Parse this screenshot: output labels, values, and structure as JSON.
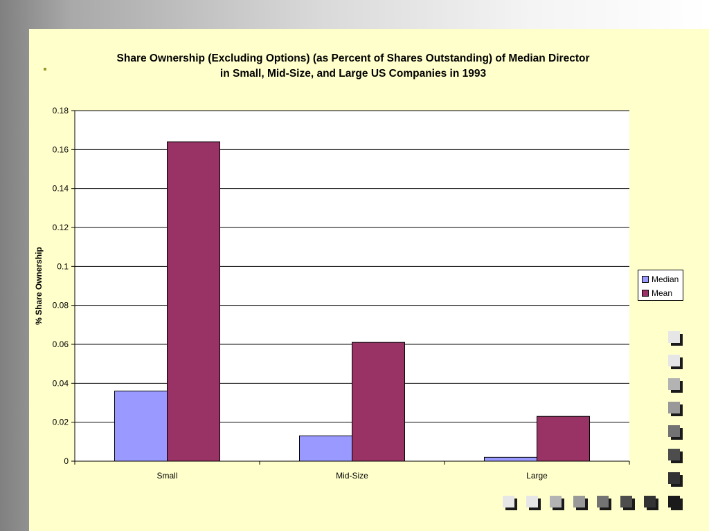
{
  "chart_data": {
    "type": "bar",
    "title": [
      "Share Ownership (Excluding Options) (as Percent of Shares Outstanding) of Median Director",
      "in Small, Mid-Size, and Large US Companies in 1993"
    ],
    "ylabel": "% Share Ownership",
    "xlabel": "",
    "categories": [
      "Small",
      "Mid-Size",
      "Large"
    ],
    "ylim": [
      0,
      0.18
    ],
    "yticks": [
      "0",
      "0.02",
      "0.04",
      "0.06",
      "0.08",
      "0.1",
      "0.12",
      "0.14",
      "0.16",
      "0.18"
    ],
    "grid": true,
    "legend_position": "right",
    "series": [
      {
        "name": "Median",
        "color": "#9999ff",
        "values": [
          0.036,
          0.013,
          0.002
        ]
      },
      {
        "name": "Mean",
        "color": "#993366",
        "values": [
          0.164,
          0.061,
          0.023
        ]
      }
    ]
  },
  "theme": {
    "slide_background": "#ffffcc",
    "plot_background": "#ffffff",
    "bullet_color": "#99992a",
    "deco_square_colors": [
      "#e6e6e6",
      "#e6e6e6",
      "#b3b3b3",
      "#999999",
      "#737373",
      "#4d4d4d",
      "#333333",
      "#1a1a1a"
    ]
  }
}
